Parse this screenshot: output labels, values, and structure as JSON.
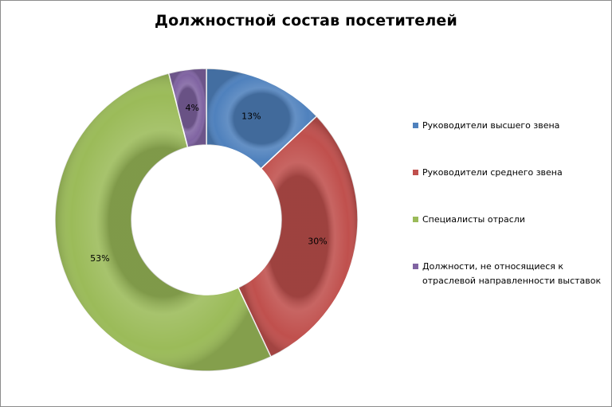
{
  "chart_data": {
    "type": "pie",
    "variant": "doughnut",
    "title": "Должностной состав посетителей",
    "legend_position": "right",
    "slices": [
      {
        "name": "Руководители высшего звена",
        "value": 13,
        "label": "13%",
        "color": "#4f81bd"
      },
      {
        "name": "Руководители среднего звена",
        "value": 30,
        "label": "30%",
        "color": "#c0504d"
      },
      {
        "name": "Специалисты отрасли",
        "value": 53,
        "label": "53%",
        "color": "#9bbb59"
      },
      {
        "name": "Должности, не относящиеся к отраслевой направленности выставок",
        "value": 4,
        "label": "4%",
        "color": "#8064a2"
      }
    ]
  }
}
